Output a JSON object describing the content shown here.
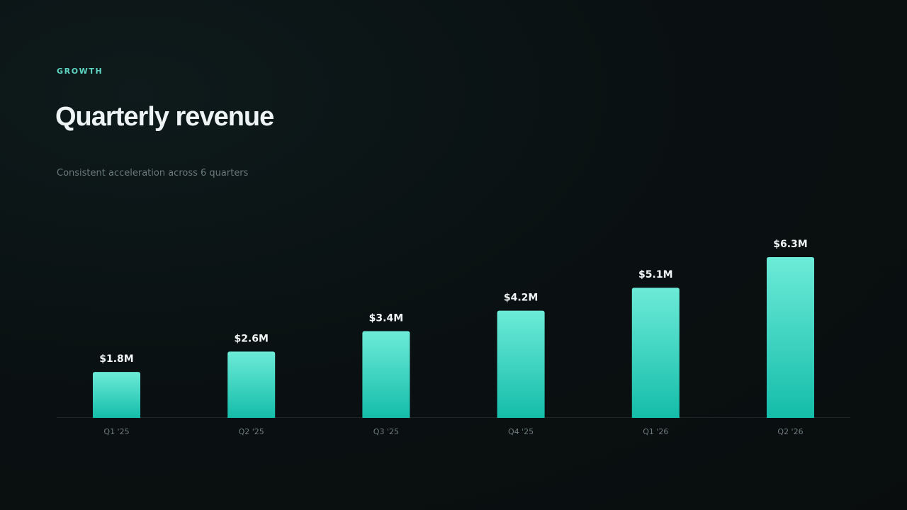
{
  "slide": {
    "eyebrow": "GROWTH",
    "title": "Quarterly revenue",
    "subtitle": "Consistent acceleration across 6 quarters"
  },
  "colors": {
    "accent": "#5fd6c3",
    "bar_top": "#6cebd8",
    "bar_bottom": "#14bda9",
    "background": "#0a1112"
  },
  "chart_data": {
    "type": "bar",
    "categories": [
      "Q1 '25",
      "Q2 '25",
      "Q3 '25",
      "Q4 '25",
      "Q1 '26",
      "Q2 '26"
    ],
    "values": [
      1.8,
      2.6,
      3.4,
      4.2,
      5.1,
      6.3
    ],
    "value_labels": [
      "$1.8M",
      "$2.6M",
      "$3.4M",
      "$4.2M",
      "$5.1M",
      "$6.3M"
    ],
    "title": "Quarterly revenue",
    "subtitle": "Consistent acceleration across 6 quarters",
    "xlabel": "",
    "ylabel": "",
    "ylim": [
      0,
      6.3
    ],
    "grid": false,
    "legend": "none"
  }
}
